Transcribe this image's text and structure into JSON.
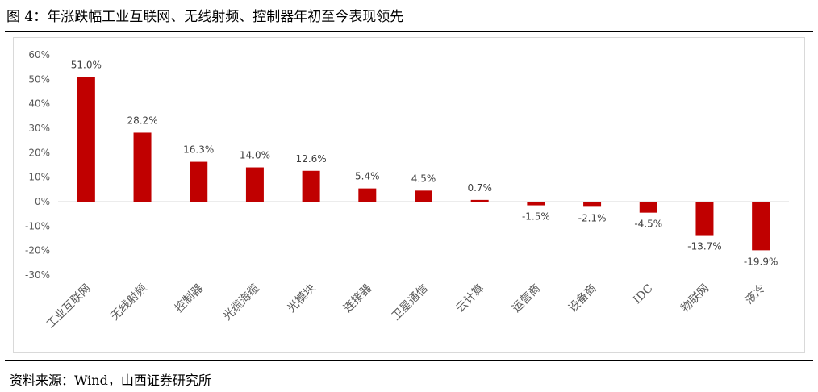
{
  "figure": {
    "title": "图 4：年涨跌幅工业互联网、无线射频、控制器年初至今表现领先",
    "source": "资料来源：Wind，山西证券研究所"
  },
  "chart_data": {
    "type": "bar",
    "title": "",
    "xlabel": "",
    "ylabel": "",
    "ylim": [
      -30,
      60
    ],
    "yticks": [
      60,
      50,
      40,
      30,
      20,
      10,
      0,
      -10,
      -20,
      -30
    ],
    "ytick_labels": [
      "60%",
      "50%",
      "40%",
      "30%",
      "20%",
      "10%",
      "0%",
      "-10%",
      "-20%",
      "-30%"
    ],
    "categories": [
      "工业互联网",
      "无线射频",
      "控制器",
      "光缆海缆",
      "光模块",
      "连接器",
      "卫星通信",
      "云计算",
      "运营商",
      "设备商",
      "IDC",
      "物联网",
      "液冷"
    ],
    "values": [
      51.0,
      28.2,
      16.3,
      14.0,
      12.6,
      5.4,
      4.5,
      0.7,
      -1.5,
      -2.1,
      -4.5,
      -13.7,
      -19.9
    ],
    "value_labels": [
      "51.0%",
      "28.2%",
      "16.3%",
      "14.0%",
      "12.6%",
      "5.4%",
      "4.5%",
      "0.7%",
      "-1.5%",
      "-2.1%",
      "-4.5%",
      "-13.7%",
      "-19.9%"
    ],
    "bar_color": "#C00000",
    "grid": false,
    "legend": "none"
  }
}
